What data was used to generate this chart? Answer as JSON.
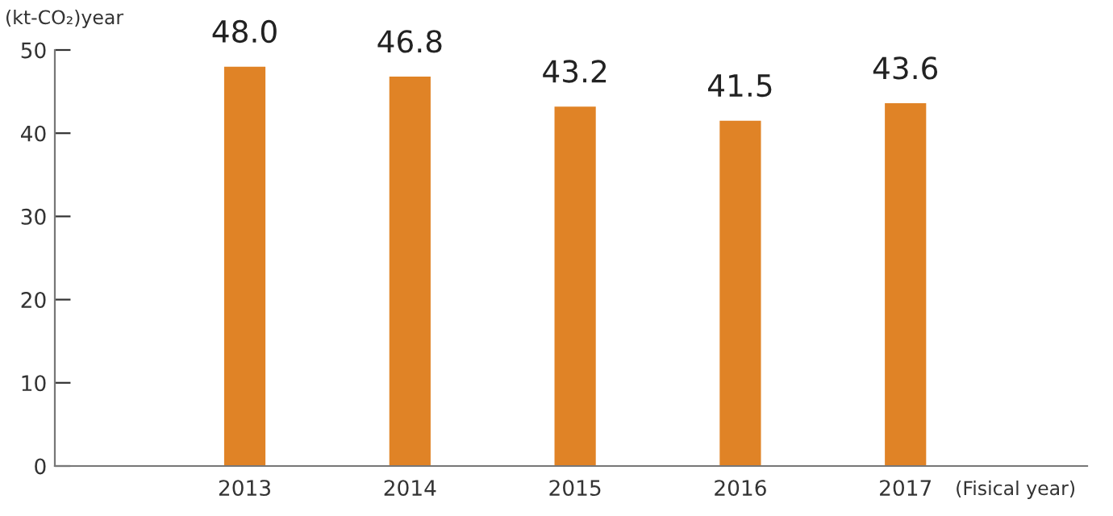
{
  "chart_data": {
    "type": "bar",
    "categories": [
      "2013",
      "2014",
      "2015",
      "2016",
      "2017"
    ],
    "values": [
      48.0,
      46.8,
      43.2,
      41.5,
      43.6
    ],
    "color": "#e08326",
    "ylabel": "(kt-CO₂)year",
    "xlabel": "(Fisical year)",
    "ylim": [
      0,
      50
    ],
    "yticks": [
      0,
      10,
      20,
      30,
      40,
      50
    ],
    "value_labels": [
      "48.0",
      "46.8",
      "43.2",
      "41.5",
      "43.6"
    ],
    "grid": false,
    "legend": false
  }
}
